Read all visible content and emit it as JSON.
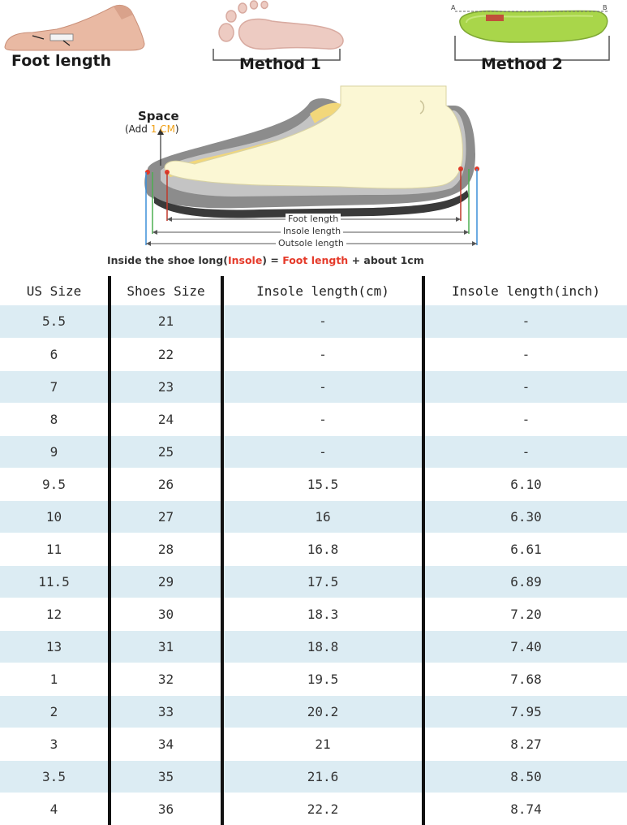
{
  "header": {
    "foot_length_label": "Foot length",
    "method1_label": "Method 1",
    "method2_label": "Method 2",
    "method2_point_a": "A",
    "method2_point_b": "B"
  },
  "diagram": {
    "space_title": "Space",
    "space_note_prefix": "(Add ",
    "space_note_value": "1 CM",
    "space_note_suffix": ")",
    "foot_length_label": "Foot length",
    "insole_length_label": "Insole length",
    "outsole_length_label": "Outsole length",
    "formula_prefix": "Inside the shoe long(",
    "formula_insole": "Insole",
    "formula_eq": ") = ",
    "formula_foot": "Foot length",
    "formula_suffix": " + about ",
    "formula_value": "1cm"
  },
  "table": {
    "headers": [
      "US Size",
      "Shoes Size",
      "Insole length(cm)",
      "Insole length(inch)"
    ],
    "rows": [
      [
        "5.5",
        "21",
        "-",
        "-"
      ],
      [
        "6",
        "22",
        "-",
        "-"
      ],
      [
        "7",
        "23",
        "-",
        "-"
      ],
      [
        "8",
        "24",
        "-",
        "-"
      ],
      [
        "9",
        "25",
        "-",
        "-"
      ],
      [
        "9.5",
        "26",
        "15.5",
        "6.10"
      ],
      [
        "10",
        "27",
        "16",
        "6.30"
      ],
      [
        "11",
        "28",
        "16.8",
        "6.61"
      ],
      [
        "11.5",
        "29",
        "17.5",
        "6.89"
      ],
      [
        "12",
        "30",
        "18.3",
        "7.20"
      ],
      [
        "13",
        "31",
        "18.8",
        "7.40"
      ],
      [
        "1",
        "32",
        "19.5",
        "7.68"
      ],
      [
        "2",
        "33",
        "20.2",
        "7.95"
      ],
      [
        "3",
        "34",
        "21",
        "8.27"
      ],
      [
        "3.5",
        "35",
        "21.6",
        "8.50"
      ],
      [
        "4",
        "36",
        "22.2",
        "8.74"
      ]
    ]
  },
  "colors": {
    "row_shade": "#dcecf3",
    "accent_red": "#e03a2a",
    "accent_orange": "#f0a21a",
    "insole_green": "#a9d64a"
  }
}
